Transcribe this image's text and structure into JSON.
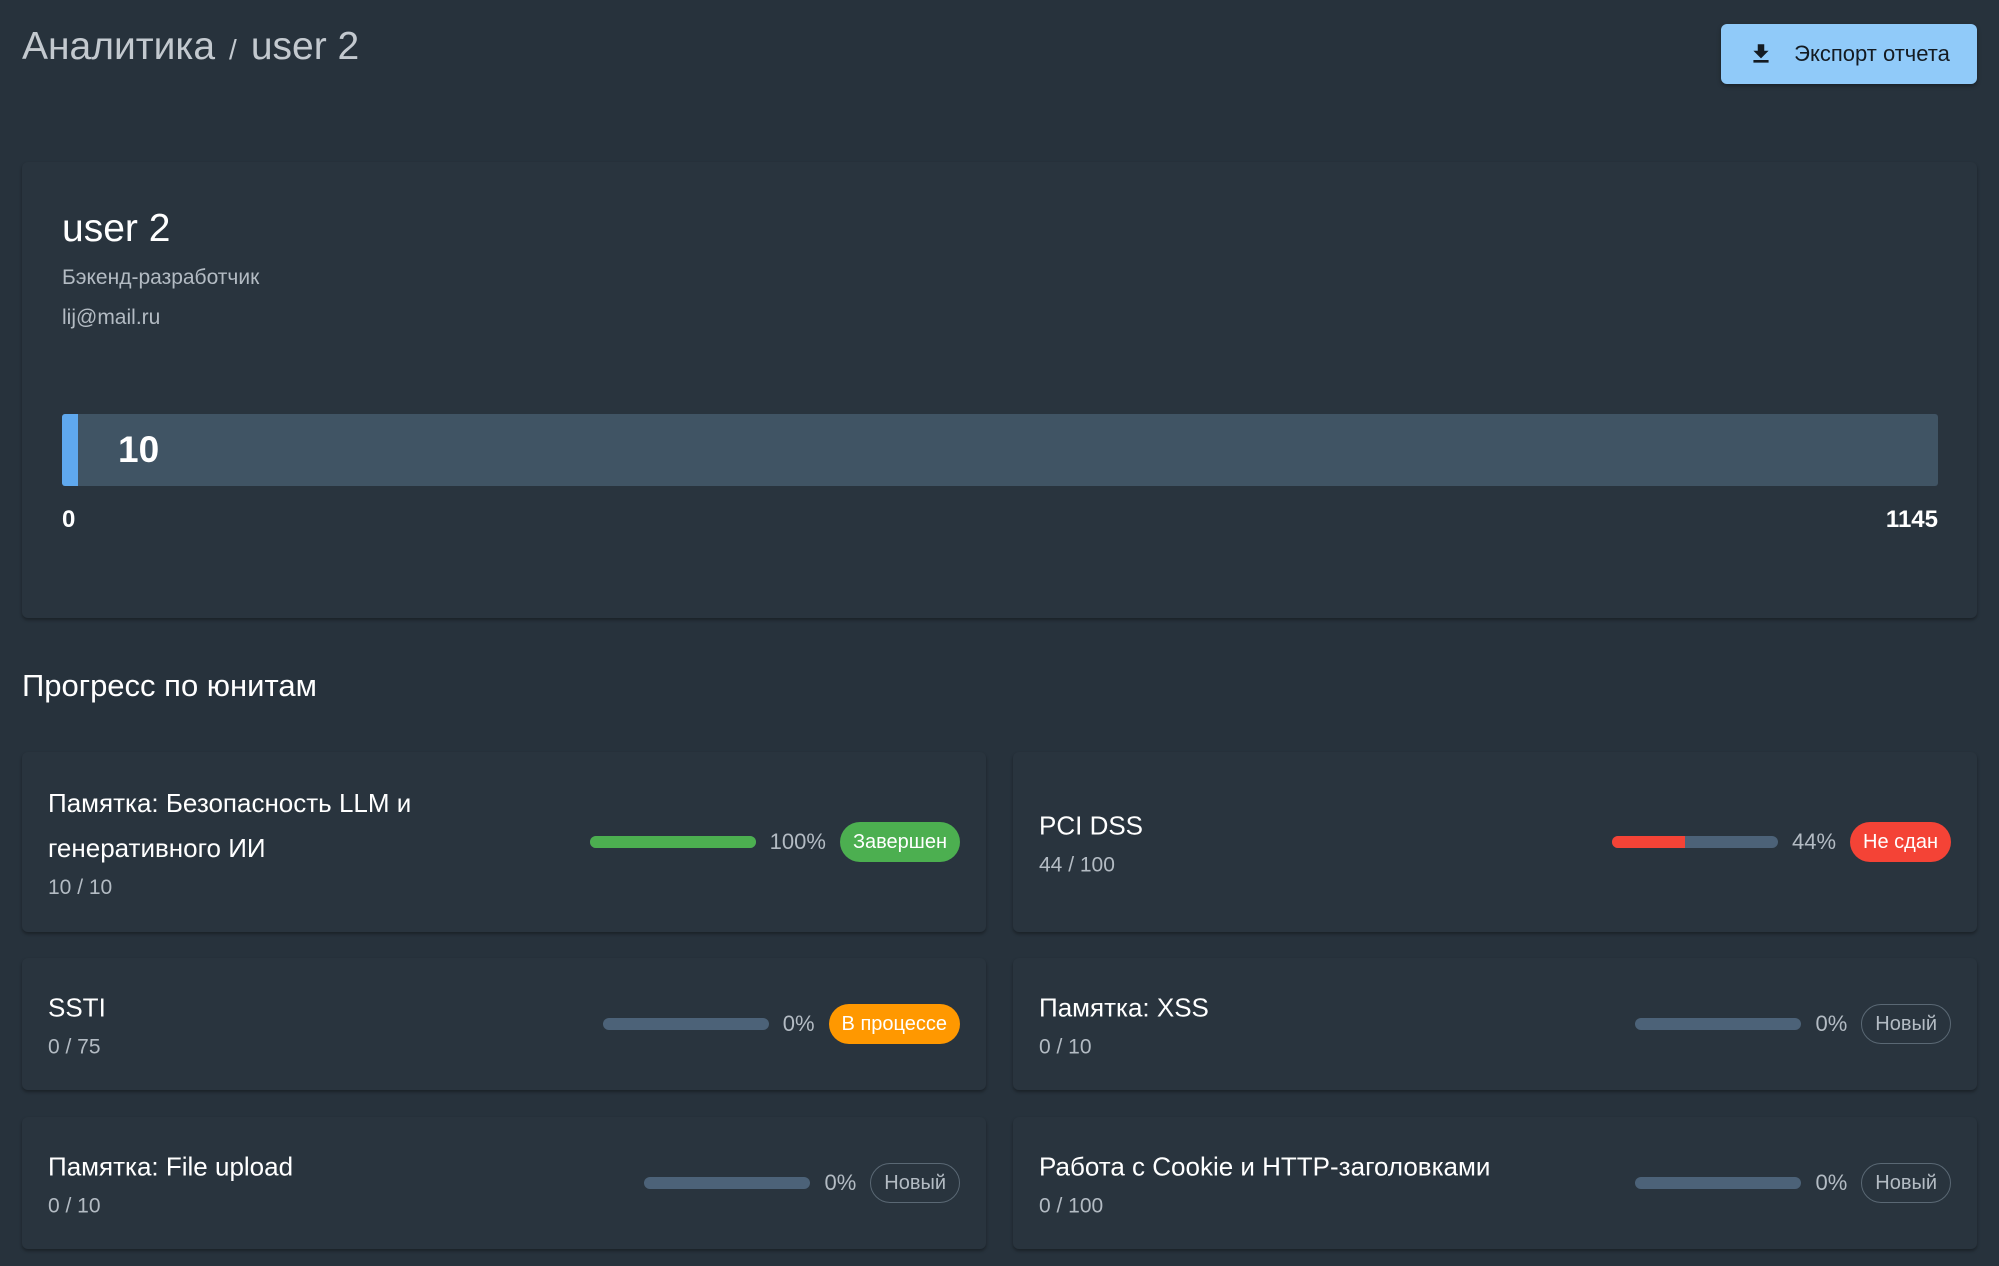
{
  "header": {
    "breadcrumb_root": "Аналитика",
    "breadcrumb_sep": "/",
    "breadcrumb_current": "user 2",
    "export_label": "Экспорт отчета",
    "export_icon": "download-icon"
  },
  "profile": {
    "name": "user 2",
    "role": "Бэкенд-разработчик",
    "email": "lij@mail.ru",
    "score": "10",
    "score_min": "0",
    "score_max": "1145",
    "score_fraction": 0.0087
  },
  "units_section": {
    "title": "Прогресс по юнитам",
    "units": [
      {
        "title": "Памятка: Безопасность LLM и генеративного ИИ",
        "count": "10 / 10",
        "percent": "100%",
        "progress": 1.0,
        "status": "Завершен",
        "status_kind": "done"
      },
      {
        "title": "PCI DSS",
        "count": "44 / 100",
        "percent": "44%",
        "progress": 0.44,
        "status": "Не сдан",
        "status_kind": "failed"
      },
      {
        "title": "SSTI",
        "count": "0 / 75",
        "percent": "0%",
        "progress": 0,
        "status": "В процессе",
        "status_kind": "in-progress"
      },
      {
        "title": "Памятка: XSS",
        "count": "0 / 10",
        "percent": "0%",
        "progress": 0,
        "status": "Новый",
        "status_kind": "new"
      },
      {
        "title": "Памятка: File upload",
        "count": "0 / 10",
        "percent": "0%",
        "progress": 0,
        "status": "Новый",
        "status_kind": "new"
      },
      {
        "title": "Работа с Cookie и HTTP-заголовками",
        "count": "0 / 100",
        "percent": "0%",
        "progress": 0,
        "status": "Новый",
        "status_kind": "new"
      }
    ]
  },
  "colors": {
    "background": "#27323c",
    "card": "#29343e",
    "accent": "#90caf9",
    "done": "#4caf50",
    "failed": "#f44336",
    "in_progress": "#ff9800",
    "track": "#4c6278"
  }
}
